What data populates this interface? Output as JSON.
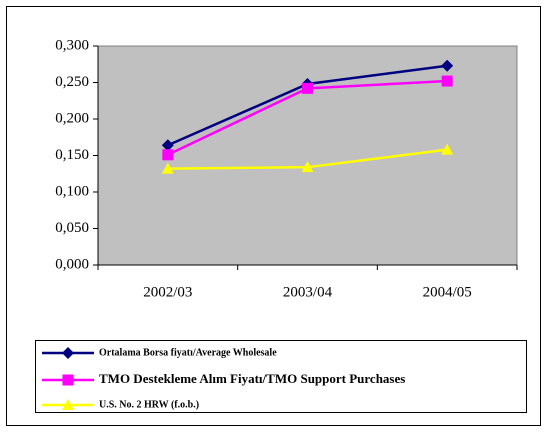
{
  "chart_data": {
    "type": "line",
    "categories": [
      "2002/03",
      "2003/04",
      "2004/05"
    ],
    "series": [
      {
        "name": "Ortalama Borsa fiyatı/Average Wholesale",
        "color": "#000080",
        "marker": "diamond",
        "values": [
          0.164,
          0.248,
          0.273
        ]
      },
      {
        "name": "TMO Destekleme Alım Fiyatı/TMO Support Purchases",
        "color": "#ff00ff",
        "marker": "square",
        "values": [
          0.151,
          0.242,
          0.252
        ]
      },
      {
        "name": "U.S. No. 2 HRW  (f.o.b.)",
        "color": "#ffff00",
        "marker": "triangle",
        "values": [
          0.132,
          0.134,
          0.158
        ]
      }
    ],
    "ylim": [
      0,
      0.3
    ],
    "yticks": [
      {
        "value": 0,
        "label": "0,000"
      },
      {
        "value": 0.05,
        "label": "0,050"
      },
      {
        "value": 0.1,
        "label": "0,100"
      },
      {
        "value": 0.15,
        "label": "0,150"
      },
      {
        "value": 0.2,
        "label": "0,200"
      },
      {
        "value": 0.25,
        "label": "0,250"
      },
      {
        "value": 0.3,
        "label": "0,300"
      }
    ],
    "grid": false,
    "plot_background": "#c0c0c0"
  }
}
